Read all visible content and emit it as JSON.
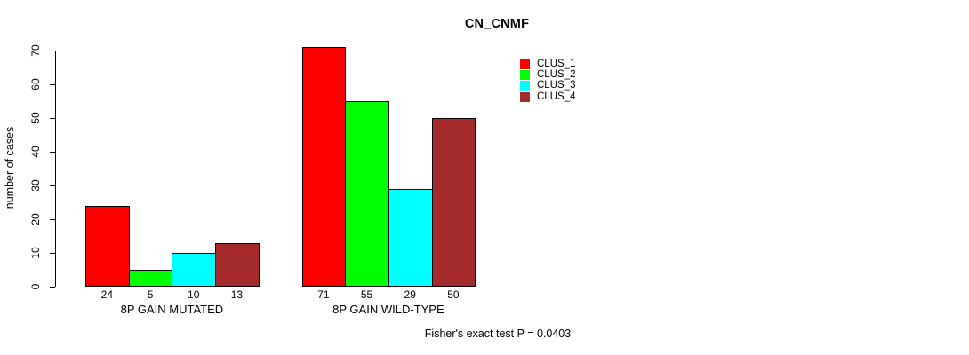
{
  "chart_data": {
    "type": "bar",
    "title": "CN_CNMF",
    "ylabel": "number of cases",
    "xlabel": "",
    "annotation": "Fisher's exact test P = 0.0403",
    "categories": [
      "8P GAIN MUTATED",
      "8P GAIN WILD-TYPE"
    ],
    "series": [
      {
        "name": "CLUS_1",
        "color": "#ff0000",
        "values": [
          24,
          71
        ]
      },
      {
        "name": "CLUS_2",
        "color": "#00ff00",
        "values": [
          5,
          55
        ]
      },
      {
        "name": "CLUS_3",
        "color": "#00ffff",
        "values": [
          10,
          29
        ]
      },
      {
        "name": "CLUS_4",
        "color": "#a52a2a",
        "values": [
          13,
          50
        ]
      }
    ],
    "ylim": [
      0,
      70
    ],
    "yticks": [
      0,
      10,
      20,
      30,
      40,
      50,
      60,
      70
    ],
    "bar_value_labels": true,
    "bar_border_color": "#000000",
    "background": "#ffffff",
    "grid": false,
    "legend_position": "top-right"
  }
}
